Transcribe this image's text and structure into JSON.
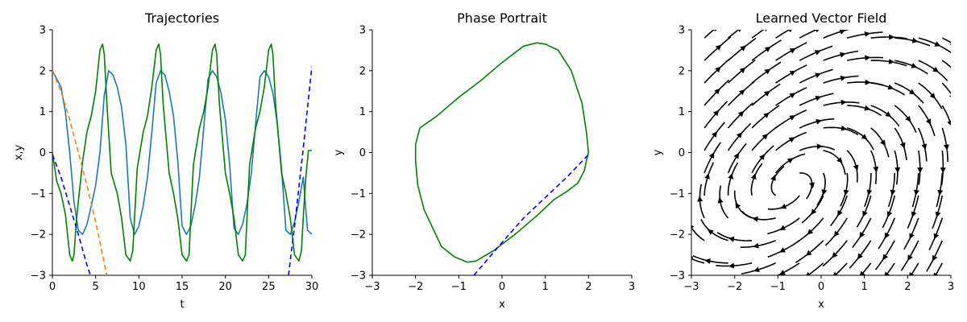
{
  "chart_data": [
    {
      "type": "line",
      "title": "Trajectories",
      "xlabel": "t",
      "ylabel": "x,y",
      "xlim": [
        0,
        30
      ],
      "ylim": [
        -3,
        3
      ],
      "xticks": [
        "0",
        "5",
        "10",
        "15",
        "20",
        "25",
        "30"
      ],
      "yticks": [
        "3",
        "2",
        "1",
        "0",
        "−1",
        "−2",
        "−3"
      ],
      "grid": false,
      "series": [
        {
          "color": "#1f77b4",
          "dash": "solid",
          "x": [
            0,
            1,
            1.5,
            2,
            2.5,
            3,
            3.5,
            4,
            4.5,
            5,
            5.5,
            6,
            6.5,
            7,
            7.5,
            8,
            8.5,
            9,
            9.5,
            10,
            10.5,
            11,
            11.5,
            12,
            12.5,
            13,
            13.5,
            14,
            14.5,
            15,
            15.5,
            16,
            16.5,
            17,
            17.5,
            18,
            18.5,
            19,
            19.5,
            20,
            20.5,
            21,
            21.5,
            22,
            22.5,
            23,
            23.5,
            24,
            24.5,
            25,
            25.5,
            26,
            26.5,
            27,
            27.5,
            28,
            28.5,
            29,
            29.5,
            30
          ],
          "y": [
            2.0,
            1.6,
            1.0,
            0.0,
            -1.2,
            -1.9,
            -2.0,
            -1.75,
            -1.3,
            -0.8,
            0.0,
            1.4,
            2.0,
            1.9,
            1.6,
            1.1,
            0.2,
            -1.6,
            -2.0,
            -1.8,
            -1.3,
            -0.6,
            0.5,
            1.7,
            2.0,
            1.9,
            1.5,
            0.9,
            -0.2,
            -1.8,
            -2.0,
            -1.8,
            -1.3,
            -0.6,
            0.6,
            1.8,
            2.0,
            1.85,
            1.45,
            0.8,
            -0.3,
            -1.85,
            -2.0,
            -1.75,
            -1.25,
            -0.5,
            0.7,
            1.85,
            2.0,
            1.85,
            1.45,
            0.7,
            -0.4,
            -1.9,
            -2.0,
            -1.7,
            -1.2,
            -0.6,
            -1.9,
            -2.0
          ]
        },
        {
          "color": "#008000",
          "dash": "solid",
          "x": [
            0,
            0.5,
            1,
            1.5,
            2,
            2.3,
            2.5,
            2.8,
            3.5,
            4,
            4.5,
            5,
            5.5,
            5.8,
            6,
            6.3,
            6.8,
            7.5,
            8,
            8.5,
            9,
            9.3,
            9.5,
            9.8,
            10.5,
            11,
            11.5,
            12,
            12.3,
            12.5,
            12.8,
            13.5,
            14,
            14.5,
            15,
            15.5,
            15.8,
            16,
            16.3,
            17,
            17.5,
            18,
            18.5,
            18.8,
            19,
            19.3,
            20,
            20.5,
            21,
            21.5,
            22,
            22.3,
            22.5,
            22.8,
            23.5,
            24,
            24.5,
            25,
            25.3,
            25.5,
            25.8,
            26.5,
            27,
            27.5,
            28,
            28.5,
            28.8,
            29,
            29.3,
            29.6,
            30
          ],
          "y": [
            0,
            -0.7,
            -1.0,
            -1.5,
            -2.5,
            -2.65,
            -2.5,
            -1.6,
            -0.2,
            0.5,
            0.9,
            1.5,
            2.5,
            2.65,
            2.4,
            1.2,
            -0.5,
            -1.0,
            -1.6,
            -2.5,
            -2.65,
            -2.4,
            -1.6,
            -0.4,
            0.5,
            0.9,
            1.6,
            2.5,
            2.65,
            2.4,
            1.2,
            -0.5,
            -1.0,
            -1.6,
            -2.5,
            -2.65,
            -2.5,
            -1.6,
            -0.3,
            0.6,
            1.0,
            1.6,
            2.5,
            2.65,
            2.4,
            1.2,
            -0.5,
            -1.0,
            -1.6,
            -2.5,
            -2.65,
            -2.5,
            -1.6,
            -0.3,
            0.6,
            1.0,
            1.6,
            2.5,
            2.65,
            2.4,
            1.2,
            -0.5,
            -1.0,
            -1.6,
            -2.5,
            -2.65,
            -2.4,
            -1.6,
            -0.6,
            0.05,
            0.05
          ]
        },
        {
          "color": "#ff7f0e",
          "dash": "dashed",
          "x": [
            0,
            1,
            2,
            3,
            4,
            5,
            6,
            6.3
          ],
          "y": [
            2.0,
            1.5,
            0.8,
            0.0,
            -0.8,
            -1.7,
            -2.7,
            -3.0
          ]
        },
        {
          "color": "#0000ff",
          "dash": "dashed",
          "x": [
            0,
            1,
            2,
            3,
            4,
            4.4
          ],
          "y": [
            -0.05,
            -0.6,
            -1.3,
            -2.0,
            -2.75,
            -3.0
          ]
        },
        {
          "color": "#0000ff",
          "dash": "dashed",
          "x": [
            27.3,
            28,
            29,
            30
          ],
          "y": [
            -3.0,
            -1.8,
            0.1,
            2.1
          ]
        }
      ]
    },
    {
      "type": "line",
      "title": "Phase Portrait",
      "xlabel": "x",
      "ylabel": "y",
      "xlim": [
        -3,
        3
      ],
      "ylim": [
        -3,
        3
      ],
      "xticks": [
        "−3",
        "−2",
        "−1",
        "0",
        "1",
        "2",
        "3"
      ],
      "yticks": [
        "3",
        "2",
        "1",
        "0",
        "−1",
        "−2",
        "−3"
      ],
      "grid": false,
      "series": [
        {
          "color": "#008000",
          "dash": "solid",
          "x": [
            2.0,
            1.95,
            1.85,
            1.6,
            1.3,
            1.0,
            0.8,
            0.5,
            0.0,
            -0.5,
            -1.0,
            -1.5,
            -1.9,
            -2.0,
            -2.0,
            -1.95,
            -1.8,
            -1.6,
            -1.4,
            -1.1,
            -0.8,
            -0.6,
            -0.2,
            0.3,
            0.8,
            1.2,
            1.5,
            1.75,
            1.9,
            1.95,
            2.0
          ],
          "y": [
            0.0,
            0.5,
            1.2,
            2.0,
            2.5,
            2.65,
            2.68,
            2.6,
            2.2,
            1.75,
            1.35,
            0.9,
            0.6,
            0.2,
            -0.2,
            -0.8,
            -1.4,
            -1.85,
            -2.3,
            -2.55,
            -2.68,
            -2.65,
            -2.4,
            -2.0,
            -1.55,
            -1.15,
            -0.95,
            -0.75,
            -0.45,
            -0.2,
            0.0
          ]
        },
        {
          "color": "#0000ff",
          "dash": "dashed",
          "x": [
            -0.65,
            0.0,
            0.5,
            1.0,
            1.5,
            2.0
          ],
          "y": [
            -3.0,
            -2.2,
            -1.6,
            -1.1,
            -0.6,
            -0.05
          ]
        }
      ]
    },
    {
      "type": "streamplot",
      "title": "Learned Vector Field",
      "xlabel": "x",
      "ylabel": "y",
      "xlim": [
        -3,
        3
      ],
      "ylim": [
        -3,
        3
      ],
      "xticks": [
        "−3",
        "−2",
        "−1",
        "0",
        "1",
        "2",
        "3"
      ],
      "yticks": [
        "3",
        "2",
        "1",
        "0",
        "−1",
        "−2",
        "−3"
      ],
      "grid": false,
      "color": "#000000",
      "center": [
        -0.5,
        -0.5
      ]
    }
  ]
}
